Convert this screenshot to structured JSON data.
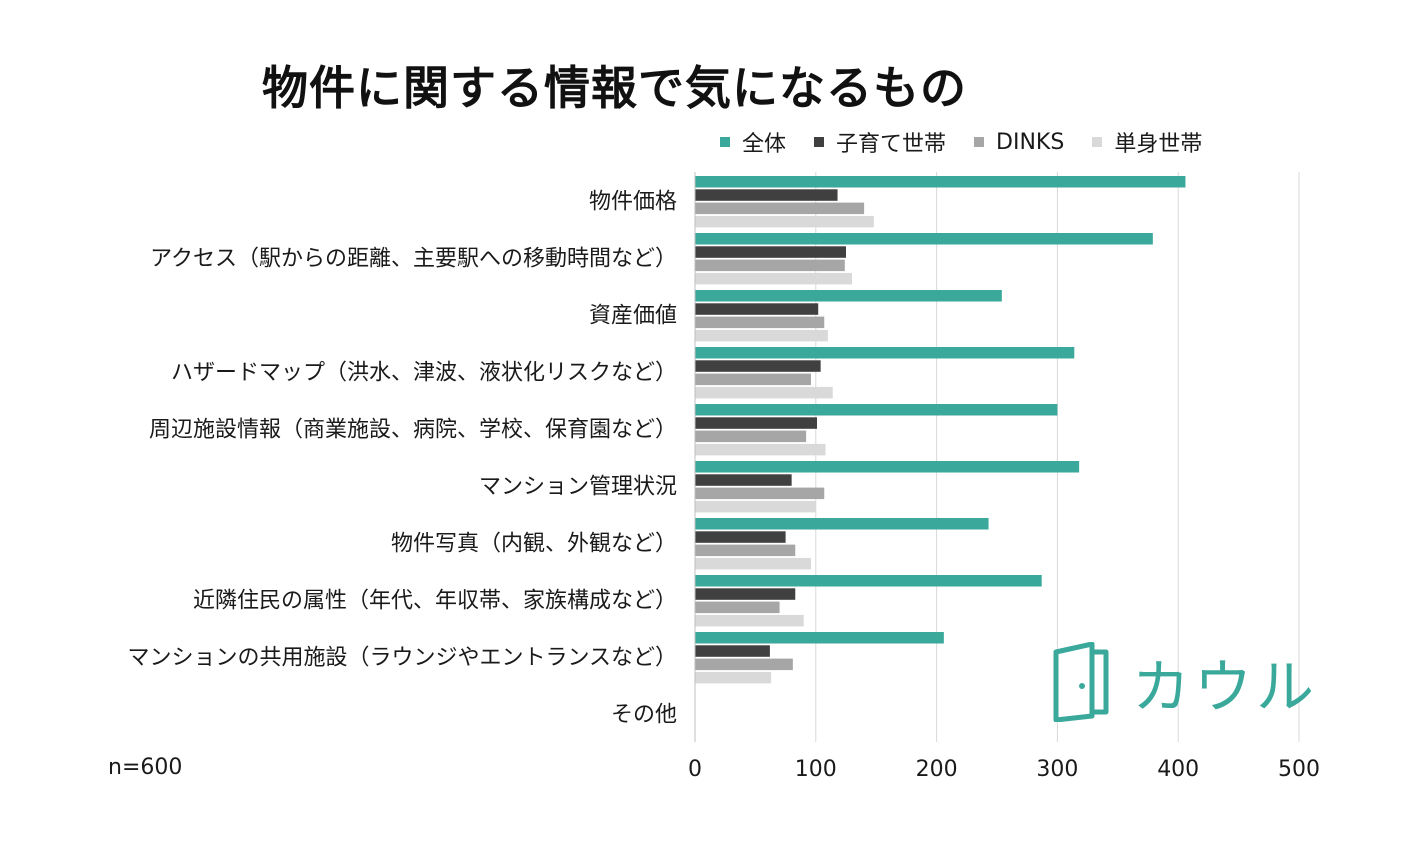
{
  "title": "物件に関する情報で気になるもの",
  "note": "n=600",
  "brand": {
    "name": "カウル",
    "color": "#3aa99b",
    "icon": "door-icon"
  },
  "colors": {
    "全体": "#3aa99b",
    "子育て世帯": "#404040",
    "DINKS": "#a6a6a6",
    "単身世帯": "#d9d9d9"
  },
  "chart_data": {
    "type": "bar",
    "orientation": "horizontal",
    "title": "物件に関する情報で気になるもの",
    "xlabel": "",
    "ylabel": "",
    "xlim": [
      0,
      500
    ],
    "xticks": [
      0,
      100,
      200,
      300,
      400,
      500
    ],
    "grid": true,
    "legend_position": "top-right",
    "categories": [
      "物件価格",
      "アクセス（駅からの距離、主要駅への移動時間など）",
      "資産価値",
      "ハザードマップ（洪水、津波、液状化リスクなど）",
      "周辺施設情報（商業施設、病院、学校、保育園など）",
      "マンション管理状況",
      "物件写真（内観、外観など）",
      "近隣住民の属性（年代、年収帯、家族構成など）",
      "マンションの共用施設（ラウンジやエントランスなど）",
      "その他"
    ],
    "series": [
      {
        "name": "全体",
        "color": "#3aa99b",
        "values": [
          406,
          379,
          254,
          314,
          300,
          318,
          243,
          287,
          206,
          0
        ]
      },
      {
        "name": "子育て世帯",
        "color": "#404040",
        "values": [
          118,
          125,
          102,
          104,
          101,
          80,
          75,
          83,
          62,
          0
        ]
      },
      {
        "name": "DINKS",
        "color": "#a6a6a6",
        "values": [
          140,
          124,
          107,
          96,
          92,
          107,
          83,
          70,
          81,
          0
        ]
      },
      {
        "name": "単身世帯",
        "color": "#d9d9d9",
        "values": [
          148,
          130,
          110,
          114,
          108,
          100,
          96,
          90,
          63,
          0
        ]
      }
    ]
  }
}
